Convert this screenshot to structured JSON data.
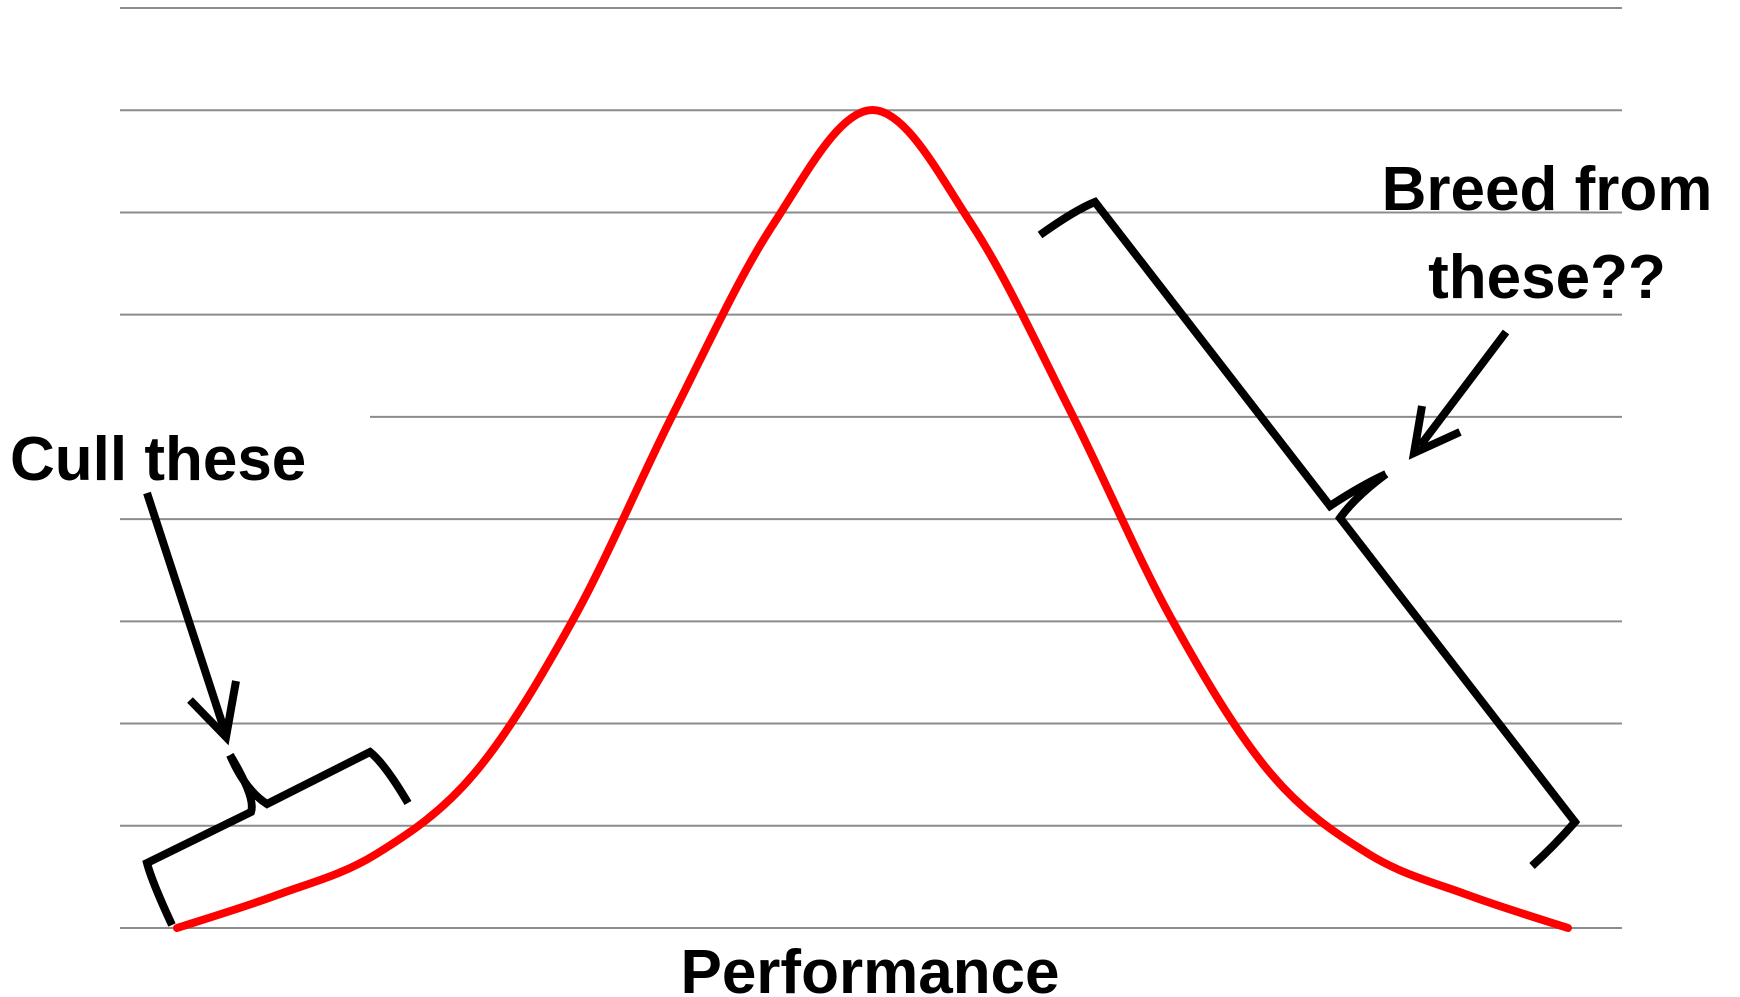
{
  "chart_data": {
    "type": "line",
    "title": "",
    "xlabel": "Performance",
    "ylabel": "",
    "grid": true,
    "gridline_count": 10,
    "curve_color": "#ff0000",
    "series": [
      {
        "values": [
          0.0,
          0.04,
          0.09,
          0.19,
          0.38,
          0.63,
          0.86,
          1.0,
          0.86,
          0.63,
          0.38,
          0.19,
          0.09,
          0.04,
          0.0
        ]
      }
    ],
    "annotations": [
      {
        "text": "Cull these",
        "points_to": "lower tail"
      },
      {
        "text": "Breed from these??",
        "lines": [
          "Breed from",
          "these??"
        ],
        "points_to": "upper tail"
      }
    ]
  }
}
